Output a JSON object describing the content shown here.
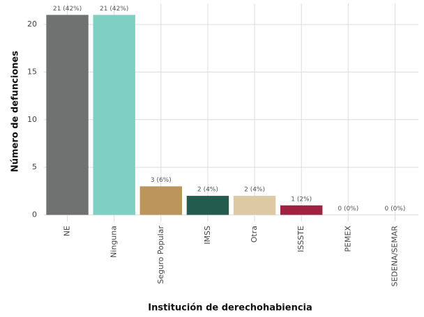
{
  "chart_data": {
    "type": "bar",
    "x_label": "Institución de derechohabiencia",
    "y_label": "Número de defunciones",
    "categories": [
      "NE",
      "Ninguna",
      "Seguro Popular",
      "IMSS",
      "Otra",
      "ISSSTE",
      "PEMEX",
      "SEDENA/SEMAR"
    ],
    "values": [
      21,
      21,
      3,
      2,
      2,
      1,
      0,
      0
    ],
    "value_labels": [
      "21 (42%)",
      "21 (42%)",
      "3 (6%)",
      "2 (4%)",
      "2 (4%)",
      "1 (2%)",
      "0 (0%)",
      "0 (0%)"
    ],
    "colors": [
      "#6f7271",
      "#7fcfc2",
      "#bc955c",
      "#235b4e",
      "#ddc9a3",
      "#9f2241",
      "#98989a",
      "#10312b"
    ],
    "ylim": [
      -0.7,
      22.2
    ],
    "yticks": [
      0,
      5,
      10,
      15,
      20
    ],
    "grid": true
  }
}
